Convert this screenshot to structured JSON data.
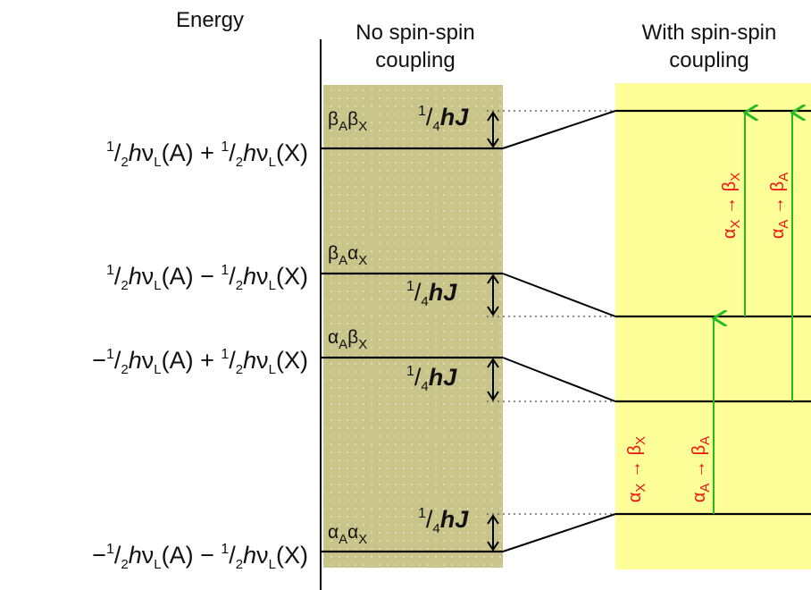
{
  "headers": {
    "energy": "Energy",
    "no_coupling_line1": "No spin-spin",
    "no_coupling_line2": "coupling",
    "with_coupling_line1": "With spin-spin",
    "with_coupling_line2": "coupling"
  },
  "energy_labels": [
    {
      "sign1": "",
      "sign2": "+",
      "level": "top"
    },
    {
      "sign1": "",
      "sign2": "−",
      "level": "upper-middle"
    },
    {
      "sign1": "−",
      "sign2": "+",
      "level": "lower-middle"
    },
    {
      "sign1": "−",
      "sign2": "−",
      "level": "bottom"
    }
  ],
  "energy_term": {
    "fraction_num": "1",
    "fraction_den": "2",
    "h": "h",
    "nu": "ν",
    "nu_sub": "L",
    "nucleus_a": "(A)",
    "nucleus_x": "(X)"
  },
  "states": [
    {
      "first": "β",
      "first_sub": "A",
      "second": "β",
      "second_sub": "X"
    },
    {
      "first": "β",
      "first_sub": "A",
      "second": "α",
      "second_sub": "X"
    },
    {
      "first": "α",
      "first_sub": "A",
      "second": "β",
      "second_sub": "X"
    },
    {
      "first": "α",
      "first_sub": "A",
      "second": "α",
      "second_sub": "X"
    }
  ],
  "coupling_shift": {
    "num": "1",
    "den": "4",
    "hj": "hJ"
  },
  "transitions": [
    {
      "from": "α",
      "from_sub": "X",
      "arrow": "→",
      "to": "β",
      "to_sub": "X"
    },
    {
      "from": "α",
      "from_sub": "A",
      "arrow": "→",
      "to": "β",
      "to_sub": "A"
    },
    {
      "from": "α",
      "from_sub": "X",
      "arrow": "→",
      "to": "β",
      "to_sub": "X"
    },
    {
      "from": "α",
      "from_sub": "A",
      "arrow": "→",
      "to": "β",
      "to_sub": "A"
    }
  ],
  "colors": {
    "uncoupled_panel": "#c8c48a",
    "coupled_panel": "#ffff99",
    "transition_arrow": "#22bb22",
    "transition_label": "#ee1111"
  }
}
